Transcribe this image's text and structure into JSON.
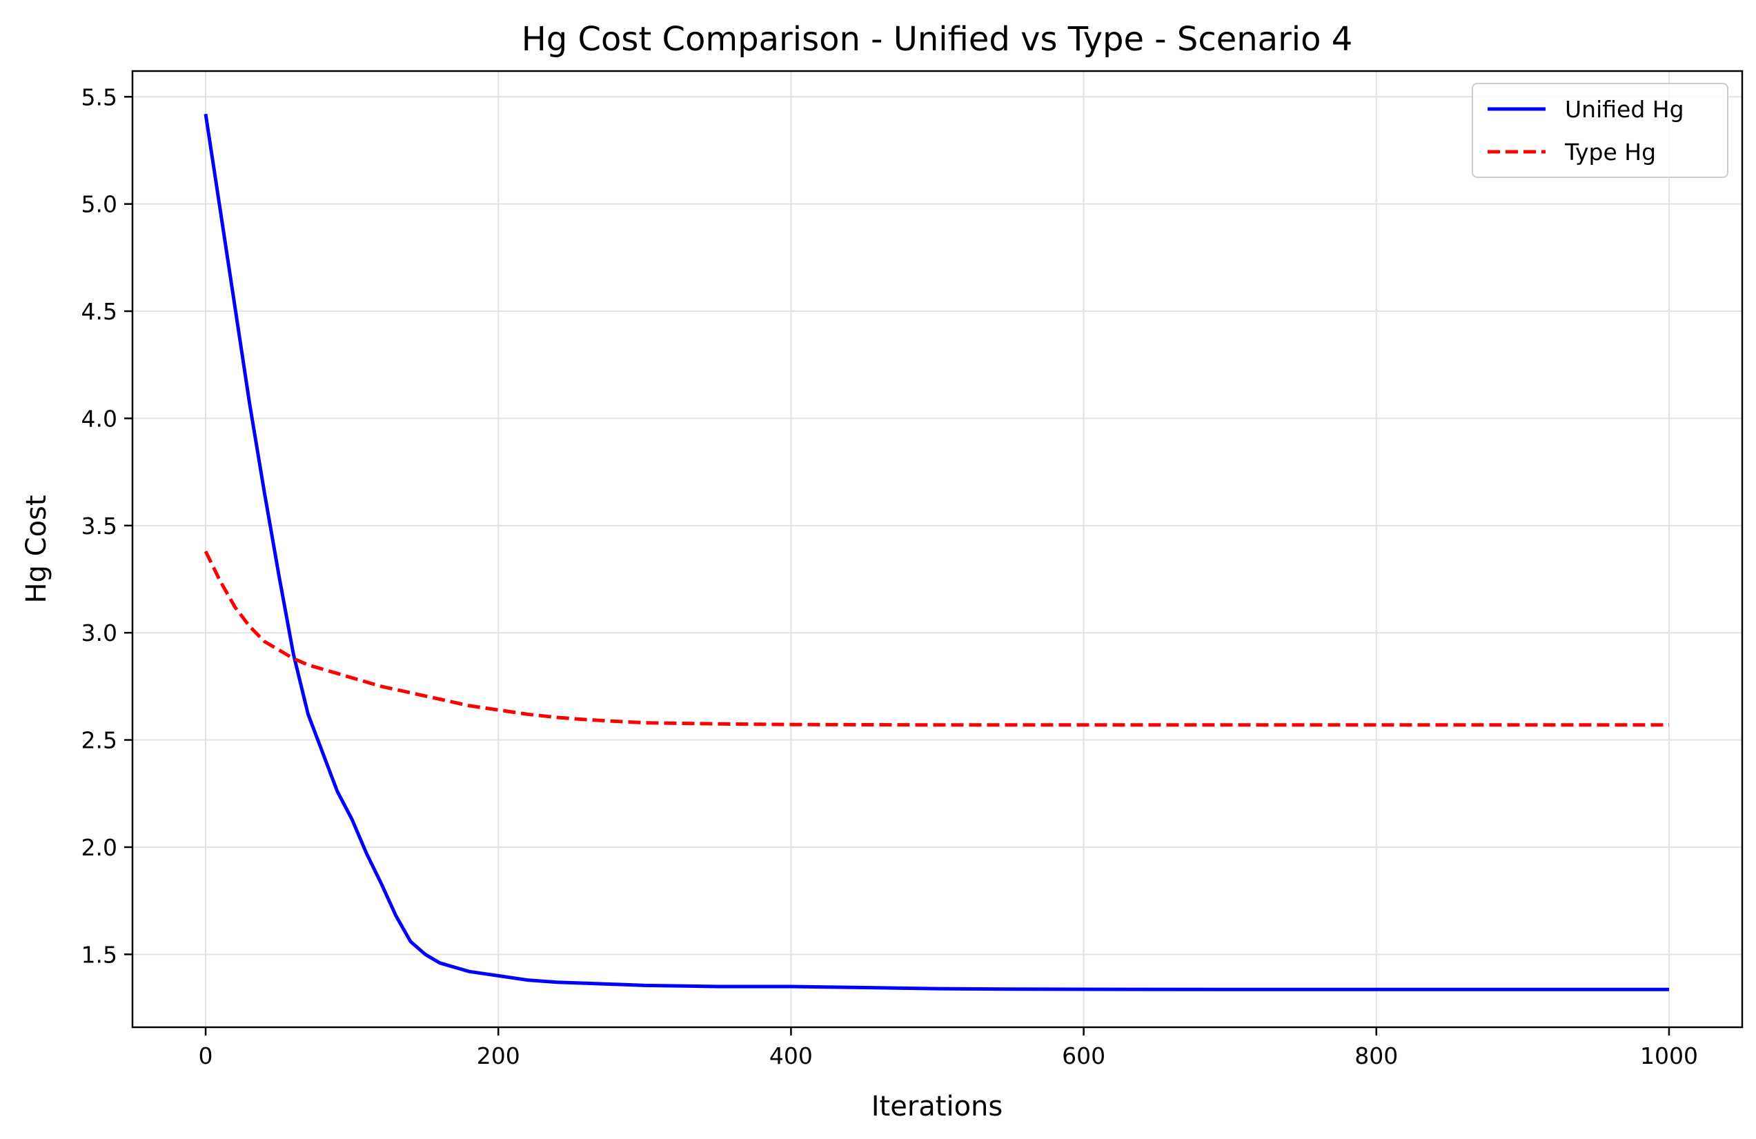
{
  "chart_data": {
    "type": "line",
    "title": "Hg Cost Comparison - Unified vs Type - Scenario 4",
    "xlabel": "Iterations",
    "ylabel": "Hg Cost",
    "xlim": [
      -50,
      1050
    ],
    "ylim": [
      1.16,
      5.62
    ],
    "xticks": [
      0,
      200,
      400,
      600,
      800,
      1000
    ],
    "xtick_labels": [
      "0",
      "200",
      "400",
      "600",
      "800",
      "1000"
    ],
    "yticks": [
      1.5,
      2.0,
      2.5,
      3.0,
      3.5,
      4.0,
      4.5,
      5.0,
      5.5
    ],
    "ytick_labels": [
      "1.5",
      "2.0",
      "2.5",
      "3.0",
      "3.5",
      "4.0",
      "4.5",
      "5.0",
      "5.5"
    ],
    "grid": true,
    "legend_position": "top-right",
    "series": [
      {
        "name": "Unified Hg",
        "color": "#0000ff",
        "style": "solid",
        "x": [
          0,
          10,
          20,
          30,
          40,
          50,
          60,
          70,
          80,
          90,
          100,
          110,
          120,
          130,
          140,
          150,
          160,
          170,
          180,
          190,
          200,
          220,
          240,
          260,
          280,
          300,
          350,
          400,
          450,
          500,
          550,
          600,
          700,
          800,
          900,
          1000
        ],
        "y": [
          5.42,
          4.97,
          4.52,
          4.07,
          3.66,
          3.27,
          2.9,
          2.62,
          2.44,
          2.26,
          2.13,
          1.97,
          1.83,
          1.68,
          1.56,
          1.5,
          1.46,
          1.44,
          1.42,
          1.41,
          1.4,
          1.38,
          1.37,
          1.365,
          1.36,
          1.355,
          1.35,
          1.35,
          1.345,
          1.34,
          1.338,
          1.337,
          1.336,
          1.336,
          1.336,
          1.336
        ]
      },
      {
        "name": "Type Hg",
        "color": "#ff0000",
        "style": "dashed",
        "x": [
          0,
          10,
          20,
          30,
          40,
          50,
          60,
          70,
          80,
          90,
          100,
          120,
          140,
          160,
          180,
          200,
          220,
          240,
          260,
          280,
          300,
          350,
          400,
          450,
          500,
          600,
          700,
          800,
          900,
          1000
        ],
        "y": [
          3.38,
          3.24,
          3.12,
          3.03,
          2.96,
          2.92,
          2.88,
          2.85,
          2.83,
          2.81,
          2.79,
          2.75,
          2.72,
          2.69,
          2.66,
          2.64,
          2.62,
          2.605,
          2.595,
          2.587,
          2.58,
          2.575,
          2.572,
          2.571,
          2.57,
          2.57,
          2.57,
          2.57,
          2.57,
          2.57
        ]
      }
    ]
  }
}
